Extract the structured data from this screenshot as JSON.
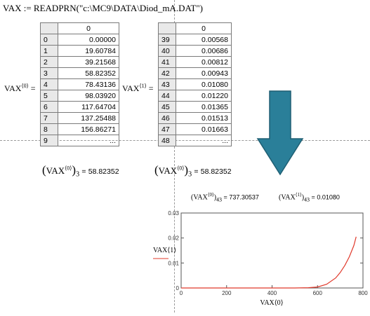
{
  "equation": "VAX := READPRN(\"c:\\MC9\\DATA\\Diod_mA.DAT\")",
  "matrix_left": {
    "label": "VAX",
    "superscript": "⟨0⟩",
    "column_header": "0",
    "rows": [
      {
        "index": "0",
        "value": "0.00000"
      },
      {
        "index": "1",
        "value": "19.60784"
      },
      {
        "index": "2",
        "value": "39.21568"
      },
      {
        "index": "3",
        "value": "58.82352"
      },
      {
        "index": "4",
        "value": "78.43136"
      },
      {
        "index": "5",
        "value": "98.03920"
      },
      {
        "index": "6",
        "value": "117.64704"
      },
      {
        "index": "7",
        "value": "137.25488"
      },
      {
        "index": "8",
        "value": "156.86271"
      },
      {
        "index": "9",
        "value": "..."
      }
    ]
  },
  "matrix_right": {
    "label": "VAX",
    "superscript": "⟨1⟩",
    "column_header": "0",
    "rows": [
      {
        "index": "39",
        "value": "0.00568"
      },
      {
        "index": "40",
        "value": "0.00686"
      },
      {
        "index": "41",
        "value": "0.00812"
      },
      {
        "index": "42",
        "value": "0.00943"
      },
      {
        "index": "43",
        "value": "0.01080"
      },
      {
        "index": "44",
        "value": "0.01220"
      },
      {
        "index": "45",
        "value": "0.01365"
      },
      {
        "index": "46",
        "value": "0.01513"
      },
      {
        "index": "47",
        "value": "0.01663"
      },
      {
        "index": "48",
        "value": "..."
      }
    ]
  },
  "subscript_exprs": {
    "left": {
      "label": "VAX",
      "sup": "⟨0⟩",
      "sub": "3",
      "result": "58.82352"
    },
    "right": {
      "label": "VAX",
      "sup": "⟨0⟩",
      "sub": "3",
      "result": "58.82352"
    },
    "small_a": {
      "label": "VAX",
      "sup": "⟨0⟩",
      "sub": "43",
      "result": "737.30537"
    },
    "small_b": {
      "label": "VAX",
      "sup": "⟨1⟩",
      "sub": "43",
      "result": "0.01080"
    }
  },
  "arrow_color": "#2a7f99",
  "chart_data": {
    "type": "line",
    "title": "",
    "xlabel": "VAX⟨0⟩",
    "ylabel": "VAX⟨1⟩",
    "xlim": [
      0,
      800
    ],
    "ylim": [
      0,
      0.03
    ],
    "xticks": [
      "0",
      "200",
      "400",
      "600",
      "800"
    ],
    "yticks": [
      "0",
      "0.01",
      "0.02",
      "0.03"
    ],
    "grid": false,
    "series": [
      {
        "color": "#e0392b",
        "x": [
          0,
          500,
          560,
          600,
          640,
          680,
          700,
          720,
          740,
          760,
          770
        ],
        "y": [
          0,
          0,
          0.0001,
          0.0004,
          0.0015,
          0.004,
          0.0062,
          0.009,
          0.0125,
          0.017,
          0.0205
        ]
      }
    ]
  }
}
